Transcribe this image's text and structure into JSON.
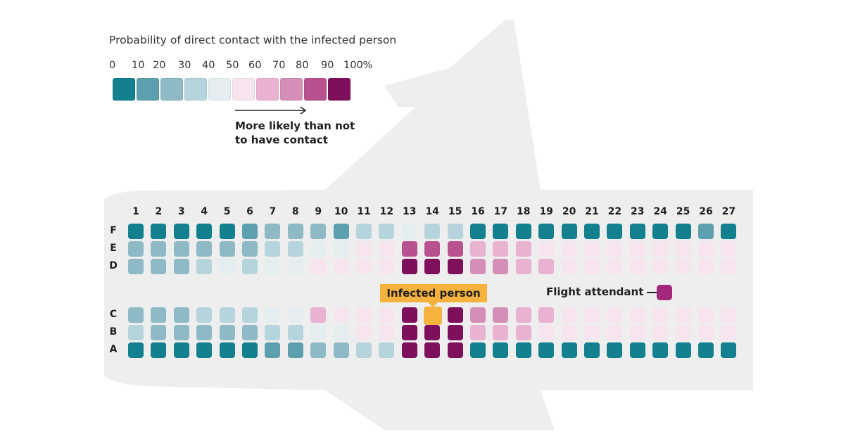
{
  "legend": {
    "title": "Probability of direct contact with the infected person",
    "ticks": [
      "0",
      "10",
      "20",
      "30",
      "40",
      "50",
      "60",
      "70",
      "80",
      "90",
      "100%"
    ],
    "colors": [
      "#12808f",
      "#5c9fae",
      "#8dbac4",
      "#b6d4db",
      "#e4eef1",
      "#f6e5ef",
      "#e8b2d0",
      "#d58fb7",
      "#b8528f",
      "#7e0f5c"
    ],
    "note_line1": "More likely than not",
    "note_line2": "to have contact"
  },
  "labels": {
    "infected": "Infected person",
    "attendant": "Flight attendant"
  },
  "columns": [
    "1",
    "2",
    "3",
    "4",
    "5",
    "6",
    "7",
    "8",
    "9",
    "10",
    "11",
    "12",
    "13",
    "14",
    "15",
    "16",
    "17",
    "18",
    "19",
    "20",
    "21",
    "22",
    "23",
    "24",
    "25",
    "26",
    "27"
  ],
  "row_labels": [
    "F",
    "E",
    "D",
    "C",
    "B",
    "A"
  ],
  "seat_bins": {
    "F": [
      0,
      0,
      0,
      0,
      0,
      1,
      2,
      2,
      2,
      1,
      3,
      3,
      4,
      3,
      3,
      0,
      0,
      0,
      0,
      0,
      0,
      0,
      0,
      0,
      0,
      1,
      0
    ],
    "E": [
      2,
      2,
      2,
      2,
      2,
      2,
      3,
      3,
      4,
      4,
      5,
      5,
      8,
      8,
      8,
      6,
      6,
      6,
      5,
      5,
      5,
      5,
      5,
      5,
      5,
      5,
      5
    ],
    "D": [
      2,
      2,
      2,
      3,
      4,
      3,
      4,
      4,
      5,
      5,
      5,
      5,
      9,
      9,
      9,
      7,
      7,
      6,
      6,
      5,
      5,
      5,
      5,
      5,
      5,
      5,
      5
    ],
    "C": [
      2,
      2,
      2,
      3,
      3,
      3,
      4,
      4,
      6,
      5,
      5,
      5,
      9,
      9,
      9,
      7,
      7,
      6,
      6,
      5,
      5,
      5,
      5,
      5,
      5,
      5,
      5
    ],
    "B": [
      3,
      2,
      2,
      2,
      2,
      2,
      3,
      3,
      4,
      4,
      5,
      5,
      9,
      9,
      9,
      6,
      6,
      6,
      5,
      5,
      5,
      5,
      5,
      5,
      5,
      5,
      5
    ],
    "A": [
      0,
      0,
      0,
      0,
      0,
      0,
      1,
      1,
      2,
      2,
      3,
      3,
      9,
      9,
      9,
      0,
      0,
      0,
      0,
      0,
      0,
      0,
      0,
      0,
      0,
      0,
      0
    ]
  },
  "infected_seat": {
    "row": "C",
    "column": "14"
  }
}
